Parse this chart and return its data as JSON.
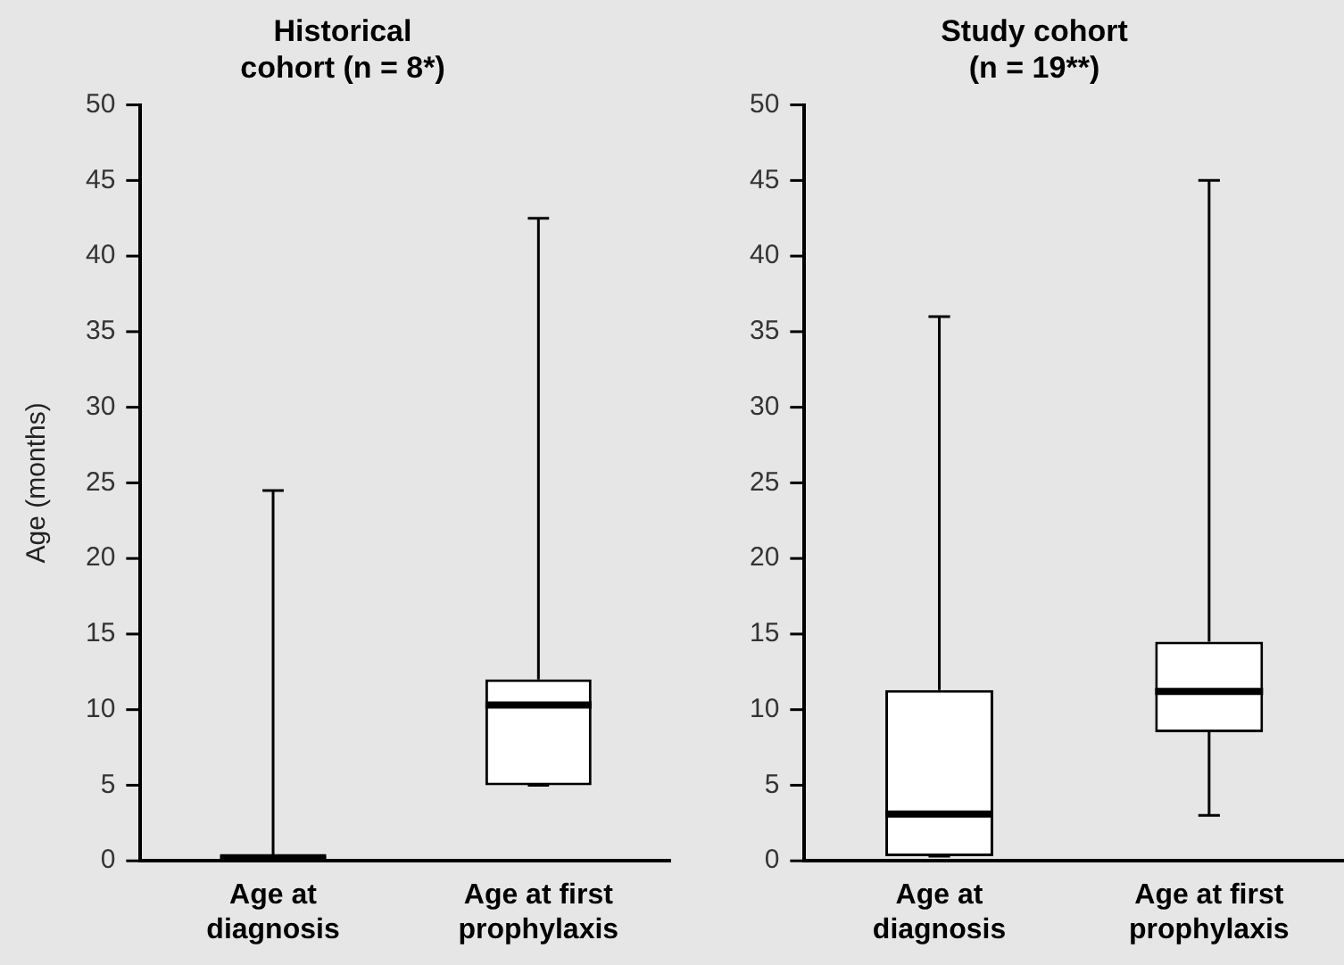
{
  "chart_data": [
    {
      "type": "box",
      "title": "Historical\ncohort (n = 8*)",
      "ylabel": "Age (months)",
      "categories": [
        "Age at\ndiagnosis",
        "Age at first\nprophylaxis"
      ],
      "boxes": [
        {
          "low": 0,
          "q1": 0,
          "median": 0.2,
          "q3": 0.3,
          "high": 24.5
        },
        {
          "low": 5,
          "q1": 5,
          "median": 10.3,
          "q3": 12,
          "high": 42.5
        }
      ],
      "ylim": [
        0,
        50
      ],
      "yticks": [
        0,
        5,
        10,
        15,
        20,
        25,
        30,
        35,
        40,
        45,
        50
      ],
      "grid": false
    },
    {
      "type": "box",
      "title": "Study cohort\n(n = 19**)",
      "categories": [
        "Age at\ndiagnosis",
        "Age at first\nprophylaxis"
      ],
      "boxes": [
        {
          "low": 0.3,
          "q1": 0.3,
          "median": 3.1,
          "q3": 11.3,
          "high": 36
        },
        {
          "low": 3,
          "q1": 8.5,
          "median": 11.2,
          "q3": 14.5,
          "high": 45
        }
      ],
      "ylim": [
        0,
        50
      ],
      "yticks": [
        0,
        5,
        10,
        15,
        20,
        25,
        30,
        35,
        40,
        45,
        50
      ],
      "grid": false
    }
  ]
}
